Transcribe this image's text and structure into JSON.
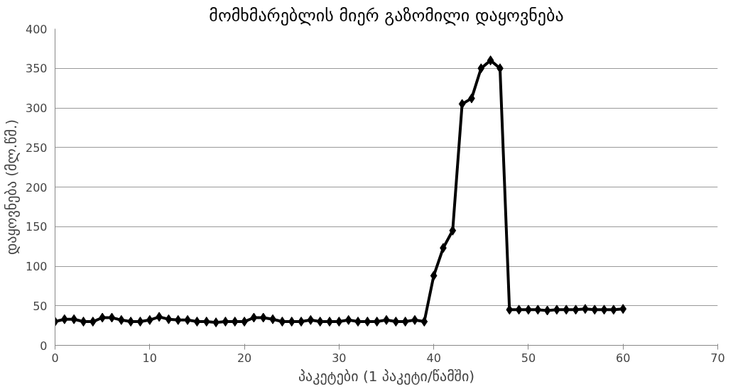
{
  "chart_data": {
    "type": "line",
    "title": "მომხმარებლის მიერ გაზომილი დაყოვნება",
    "xlabel": "პაკეტები (1 პაკეტი/წამში)",
    "ylabel": "დაყოვნება (მლ.წმ.)",
    "x": [
      0,
      1,
      2,
      3,
      4,
      5,
      6,
      7,
      8,
      9,
      10,
      11,
      12,
      13,
      14,
      15,
      16,
      17,
      18,
      19,
      20,
      21,
      22,
      23,
      24,
      25,
      26,
      27,
      28,
      29,
      30,
      31,
      32,
      33,
      34,
      35,
      36,
      37,
      38,
      39,
      40,
      41,
      42,
      43,
      44,
      45,
      46,
      47,
      48,
      49,
      50,
      51,
      52,
      53,
      54,
      55,
      56,
      57,
      58,
      59,
      60
    ],
    "series": [
      {
        "color": "#000000",
        "values": [
          30,
          33,
          33,
          30,
          30,
          35,
          35,
          32,
          30,
          30,
          32,
          36,
          33,
          32,
          32,
          30,
          30,
          29,
          30,
          30,
          30,
          35,
          35,
          33,
          30,
          30,
          30,
          32,
          30,
          30,
          30,
          32,
          30,
          30,
          30,
          32,
          30,
          30,
          32,
          30,
          88,
          123,
          145,
          305,
          312,
          350,
          360,
          350,
          45,
          45,
          45,
          45,
          44,
          45,
          45,
          45,
          46,
          45,
          45,
          45,
          46
        ]
      }
    ],
    "xlim": [
      0,
      70
    ],
    "xticks": [
      0,
      10,
      20,
      30,
      40,
      50,
      60,
      70
    ],
    "ylim": [
      0,
      400
    ],
    "yticks": [
      0,
      50,
      100,
      150,
      200,
      250,
      300,
      350,
      400
    ],
    "grid": "y",
    "marker": "diamond",
    "line_style": "solid"
  }
}
